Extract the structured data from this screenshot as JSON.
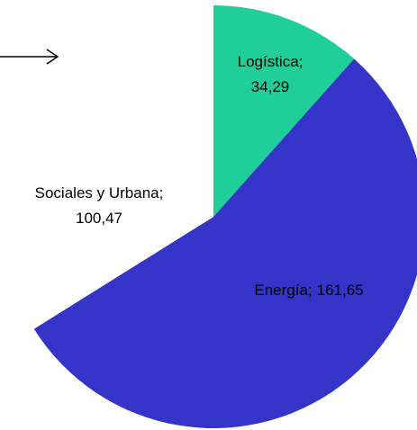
{
  "chart_data": {
    "type": "pie",
    "categories": [
      "Logística",
      "Energía",
      "Sociales y Urbana"
    ],
    "values": [
      34.29,
      161.65,
      100.47
    ],
    "value_labels": [
      "34,29",
      "161,65",
      "100,47"
    ],
    "label_separator": ";",
    "colors": [
      "#1fce98",
      "#3434c8",
      "#ffffff"
    ]
  }
}
